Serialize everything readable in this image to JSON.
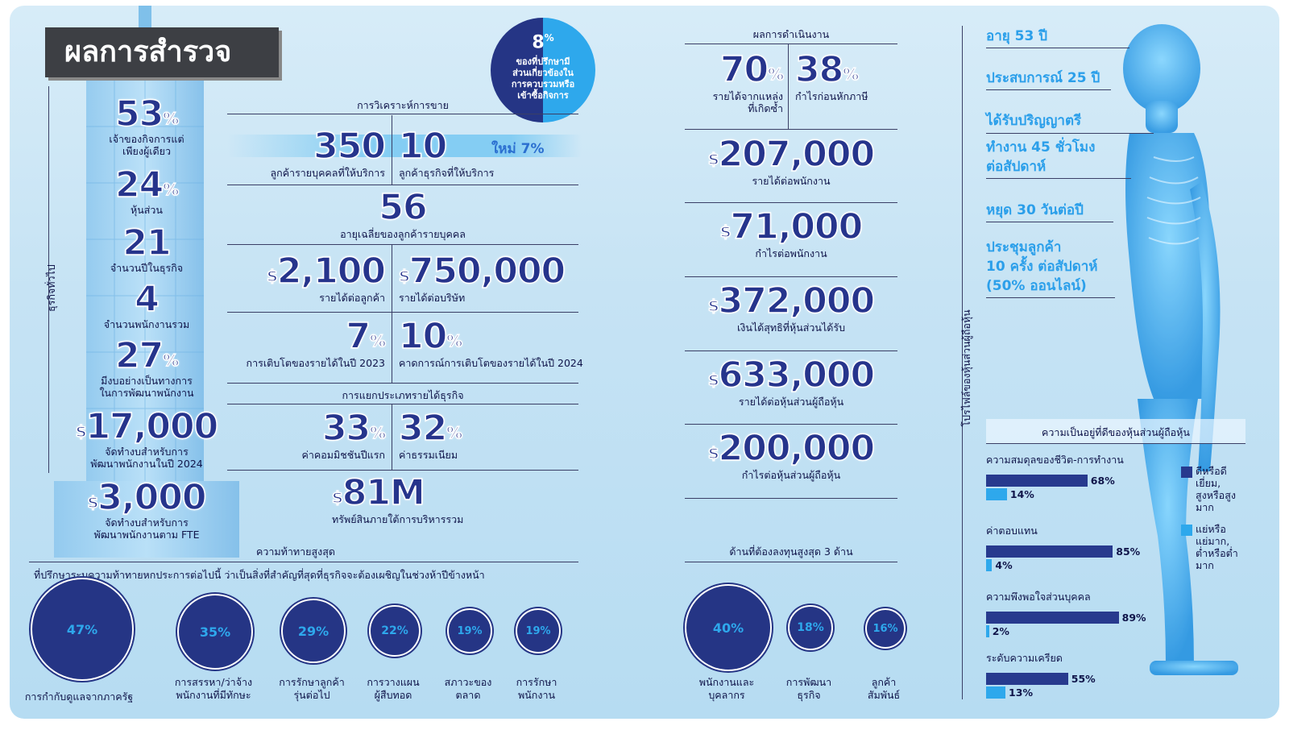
{
  "title": "ผลการสำรวจ",
  "side_label_general": "ธุรกิจทั่วไป",
  "side_label_profile": "โปรไฟล์ของหุ้นส่วนผู้ถือหุ้น",
  "colors": {
    "navy": "#1e2f84",
    "light_blue": "#2ea8ec",
    "background": "#c6e3f4"
  },
  "tower_stats": [
    {
      "value": "53",
      "suffix": "%",
      "label": "เจ้าของกิจการแต่\nเพียงผู้เดียว"
    },
    {
      "value": "24",
      "suffix": "%",
      "label": "หุ้นส่วน"
    },
    {
      "value": "21",
      "suffix": "",
      "label": "จำนวนปีในธุรกิจ"
    },
    {
      "value": "4",
      "suffix": "",
      "label": "จำนวนพนักงานรวม"
    },
    {
      "value": "27",
      "suffix": "%",
      "label": "มีงบอย่างเป็นทางการ\nในการพัฒนาพนักงาน"
    },
    {
      "value": "17,000",
      "prefix": "$",
      "label": "จัดทำงบสำหรับการ\nพัฒนาพนักงานในปี 2024"
    },
    {
      "value": "3,000",
      "prefix": "$",
      "label": "จัดทำงบสำหรับการ\nพัฒนาพนักงานตาม FTE"
    }
  ],
  "badge": {
    "value": "8",
    "suffix": "%",
    "text": "ของที่ปรึกษามี\nส่วนเกี่ยวข้องใน\nการควบรวมหรือ\nเข้าซื้อกิจการ"
  },
  "sales_analysis": {
    "heading": "การวิเคราะห์การขาย",
    "clients_individual": {
      "value": "350",
      "label": "ลูกค้ารายบุคคลที่ให้บริการ"
    },
    "clients_business": {
      "value": "10",
      "label": "ลูกค้าธุรกิจที่ให้บริการ"
    },
    "new_label": "ใหม่ 7%",
    "avg_age": {
      "value": "56",
      "label": "อายุเฉลี่ยของลูกค้ารายบุคคล"
    },
    "rev_per_client": {
      "value": "2,100",
      "prefix": "$",
      "label": "รายได้ต่อลูกค้า"
    },
    "rev_per_company": {
      "value": "750,000",
      "prefix": "$",
      "label": "รายได้ต่อบริษัท"
    },
    "growth_2023": {
      "value": "7",
      "suffix": "%",
      "label": "การเติบโตของรายได้ในปี 2023"
    },
    "growth_2024": {
      "value": "10",
      "suffix": "%",
      "label": "คาดการณ์การเติบโตของรายได้ในปี 2024"
    }
  },
  "revenue_breakdown": {
    "heading": "การแยกประเภทรายได้ธุรกิจ",
    "first_year": {
      "value": "33",
      "suffix": "%",
      "label": "ค่าคอมมิชชันปีแรก"
    },
    "fees": {
      "value": "32",
      "suffix": "%",
      "label": "ค่าธรรมเนียม"
    },
    "aum": {
      "value": "81M",
      "prefix": "$",
      "label": "ทรัพย์สินภายใต้การบริหารรวม"
    }
  },
  "performance": {
    "heading": "ผลการดำเนินงาน",
    "recurring": {
      "value": "70",
      "suffix": "%",
      "label": "รายได้จากแหล่ง\nที่เกิดซ้ำ"
    },
    "pretax": {
      "value": "38",
      "suffix": "%",
      "label": "กำไรก่อนหักภาษี"
    },
    "items": [
      {
        "value": "207,000",
        "prefix": "$",
        "label": "รายได้ต่อพนักงาน"
      },
      {
        "value": "71,000",
        "prefix": "$",
        "label": "กำไรต่อพนักงาน"
      },
      {
        "value": "372,000",
        "prefix": "$",
        "label": "เงินได้สุทธิที่หุ้นส่วนได้รับ"
      },
      {
        "value": "633,000",
        "prefix": "$",
        "label": "รายได้ต่อหุ้นส่วนผู้ถือหุ้น"
      },
      {
        "value": "200,000",
        "prefix": "$",
        "label": "กำไรต่อหุ้นส่วนผู้ถือหุ้น"
      }
    ]
  },
  "challenges": {
    "heading": "ความท้าทายสูงสุด",
    "subheading": "ที่ปรึกษาระบุความท้าทายหกประการต่อไปนี้ ว่าเป็นสิ่งที่สำคัญที่สุดที่ธุรกิจจะต้องเผชิญในช่วงห้าปีข้างหน้า",
    "items": [
      {
        "value": "47%",
        "label": "การกำกับดูแลจากภาครัฐ"
      },
      {
        "value": "35%",
        "label": "การสรรหา/ว่าจ้าง\nพนักงานที่มีทักษะ"
      },
      {
        "value": "29%",
        "label": "การรักษาลูกค้า\nรุ่นต่อไป"
      },
      {
        "value": "22%",
        "label": "การวางแผน\nผู้สืบทอด"
      },
      {
        "value": "19%",
        "label": "สภาวะของ\nตลาด"
      },
      {
        "value": "19%",
        "label": "การรักษา\nพนักงาน"
      }
    ]
  },
  "investments": {
    "heading": "ด้านที่ต้องลงทุนสูงสุด 3 ด้าน",
    "items": [
      {
        "value": "40%",
        "label": "พนักงานและ\nบุคลากร"
      },
      {
        "value": "18%",
        "label": "การพัฒนา\nธุรกิจ"
      },
      {
        "value": "16%",
        "label": "ลูกค้า\nสัมพันธ์"
      }
    ]
  },
  "profile": [
    "อายุ 53 ปี",
    "ประสบการณ์ 25 ปี",
    "ได้รับปริญญาตรี",
    "ทำงาน 45 ชั่วโมง\nต่อสัปดาห์",
    "หยุด 30 วันต่อปี",
    "ประชุมลูกค้า\n10 ครั้ง ต่อสัปดาห์\n(50% ออนไลน์)"
  ],
  "chart_data": {
    "type": "bar",
    "title": "ความเป็นอยู่ที่ดีของหุ้นส่วนผู้ถือหุ้น",
    "categories": [
      "ความสมดุลของชีวิต-การทำงาน",
      "ค่าตอบแทน",
      "ความพึงพอใจส่วนบุคคล",
      "ระดับความเครียด"
    ],
    "series": [
      {
        "name": "ดีหรือดีเยี่ยม, สูงหรือสูงมาก",
        "values": [
          68,
          85,
          89,
          55
        ],
        "color": "#273a8e"
      },
      {
        "name": "แย่หรือแย่มาก, ต่ำหรือต่ำมาก",
        "values": [
          14,
          4,
          2,
          13
        ],
        "color": "#2ea8ec"
      }
    ],
    "value_labels": [
      [
        "68%",
        "14%"
      ],
      [
        "85%",
        "4%"
      ],
      [
        "89%",
        "2%"
      ],
      [
        "55%",
        "13%"
      ]
    ],
    "legend": [
      "ดีหรือดี\nเยี่ยม,\nสูงหรือสูง\nมาก",
      "แย่หรือ\nแย่มาก,\nต่ำหรือต่ำ\nมาก"
    ]
  }
}
